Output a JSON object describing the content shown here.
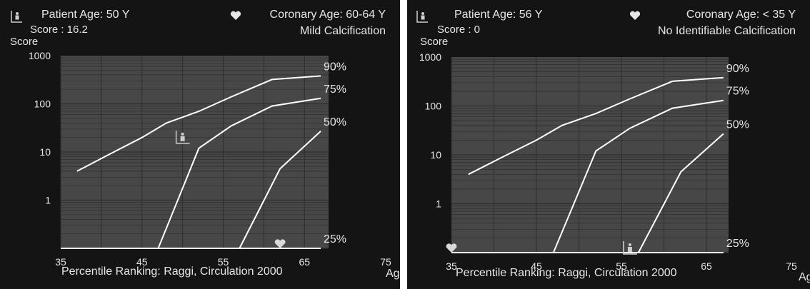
{
  "panels": [
    {
      "patient_age": "Patient Age: 50 Y",
      "score": "Score : 16.2",
      "coronary_age": "Coronary Age: 60-64 Y",
      "calcification": "Mild Calcification",
      "y_axis_title": "Score",
      "x_axis_title": "Ag",
      "footer": "Percentile Ranking: Raggi, Circulation 2000"
    },
    {
      "patient_age": "Patient Age: 56 Y",
      "score": "Score : 0",
      "coronary_age": "Coronary Age: < 35 Y",
      "calcification": "No Identifiable Calcification",
      "y_axis_title": "Score",
      "x_axis_title": "Ag",
      "footer": "Percentile Ranking: Raggi, Circulation 2000"
    }
  ],
  "colors": {
    "panel_bg": "#141414",
    "plot_bg": "#474747",
    "curve": "#ffffff",
    "grid": "#2e2e2e",
    "text": "#e6e6e6"
  },
  "icons": [
    "patient-icon",
    "heart-icon"
  ],
  "chart_data": [
    {
      "type": "line",
      "x_scale": "linear",
      "y_scale": "log",
      "xlim": [
        35,
        75
      ],
      "ylim": [
        0.1,
        1000
      ],
      "x_ticks": [
        "35",
        "45",
        "55",
        "65",
        "75"
      ],
      "y_ticks": [
        "1",
        "10",
        "100",
        "1000"
      ],
      "grid": true,
      "series": [
        {
          "name": "90%",
          "x": [
            37,
            41,
            45,
            48,
            52,
            56,
            61,
            67
          ],
          "y": [
            4,
            9,
            20,
            40,
            70,
            140,
            320,
            380
          ]
        },
        {
          "name": "75%",
          "x": [
            47,
            52,
            56,
            61,
            67
          ],
          "y": [
            0.1,
            12,
            35,
            90,
            130
          ]
        },
        {
          "name": "50%",
          "x": [
            57,
            62,
            67
          ],
          "y": [
            0.1,
            4.5,
            27
          ]
        },
        {
          "name": "25%",
          "x": [
            35,
            67
          ],
          "y": [
            0.1,
            0.1
          ]
        }
      ],
      "patient_marker": {
        "x": 50,
        "y": 16.2
      },
      "coronary_marker": {
        "x": 62,
        "y": 0.1
      }
    },
    {
      "type": "line",
      "x_scale": "linear",
      "y_scale": "log",
      "xlim": [
        35,
        75
      ],
      "ylim": [
        0.1,
        1000
      ],
      "x_ticks": [
        "35",
        "45",
        "55",
        "65",
        "75"
      ],
      "y_ticks": [
        "1",
        "10",
        "100",
        "1000"
      ],
      "grid": true,
      "series": [
        {
          "name": "90%",
          "x": [
            37,
            41,
            45,
            48,
            52,
            56,
            61,
            67
          ],
          "y": [
            4,
            9,
            20,
            40,
            70,
            140,
            320,
            380
          ]
        },
        {
          "name": "75%",
          "x": [
            47,
            52,
            56,
            61,
            67
          ],
          "y": [
            0.1,
            12,
            35,
            90,
            130
          ]
        },
        {
          "name": "50%",
          "x": [
            57,
            62,
            67
          ],
          "y": [
            0.1,
            4.5,
            27
          ]
        },
        {
          "name": "25%",
          "x": [
            35,
            67
          ],
          "y": [
            0.1,
            0.1
          ]
        }
      ],
      "patient_marker": {
        "x": 56,
        "y": 0.1
      },
      "coronary_marker": {
        "x": 35,
        "y": 0.1
      }
    }
  ]
}
